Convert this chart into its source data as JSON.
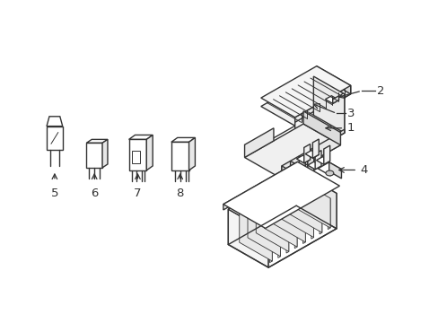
{
  "bg_color": "#ffffff",
  "line_color": "#333333",
  "line_width": 1.0,
  "fig_width": 4.89,
  "fig_height": 3.6,
  "dpi": 100
}
